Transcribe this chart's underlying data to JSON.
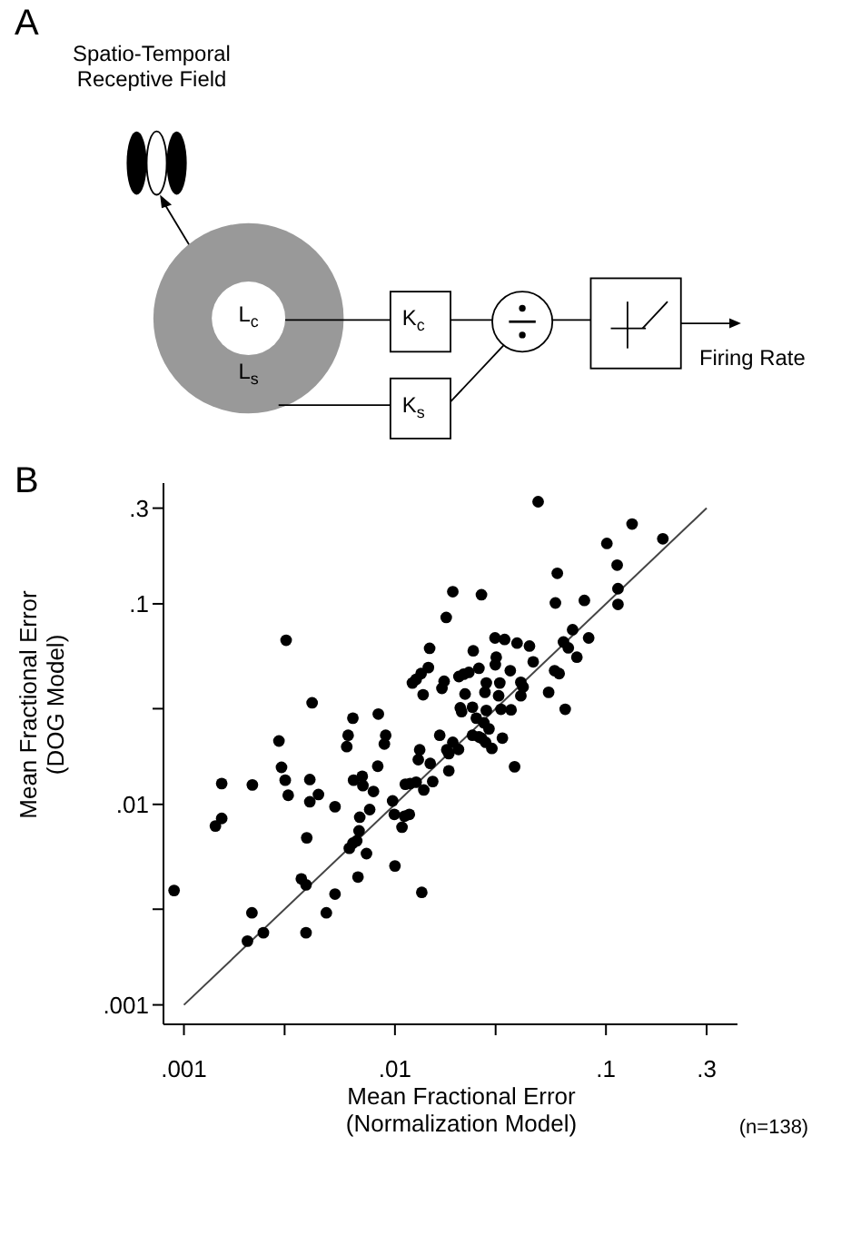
{
  "chart_data": [
    {
      "type": "other",
      "title": "A",
      "annotations": [
        "Spatio-Temporal\nReceptive Field",
        "L$_{c}$",
        "L$_{s}$",
        "K$_{c}$",
        "K$_{s}$",
        "Firing Rate"
      ]
    },
    {
      "type": "scatter",
      "title": "B",
      "xlabel": "Mean Fractional Error\n(Normalization Model)",
      "ylabel": "Mean Fractional Error\n(DOG Model)",
      "annotations": [
        "(n=138)"
      ],
      "log": "xy",
      "xlim": [
        0.0008,
        0.42
      ],
      "ylim": [
        0.0008,
        0.4
      ],
      "xticks": [
        {
          "value": 0.001,
          "label": ".001"
        },
        {
          "value": 0.003,
          "label": null
        },
        {
          "value": 0.01,
          "label": ".01"
        },
        {
          "value": 0.03,
          "label": null
        },
        {
          "value": 0.1,
          "label": ".1"
        },
        {
          "value": 0.3,
          "label": ".3"
        }
      ],
      "yticks": [
        {
          "value": 0.001,
          "label": ".001"
        },
        {
          "value": 0.003,
          "label": null
        },
        {
          "value": 0.01,
          "label": ".01"
        },
        {
          "value": 0.03,
          "label": null
        },
        {
          "value": 0.1,
          "label": ".1"
        },
        {
          "value": 0.3,
          "label": ".3"
        }
      ],
      "series": [
        {
          "type": "scatter",
          "color": "#000000",
          "marker": "circle",
          "x": [
            0.0477,
            0.133,
            0.186,
            0.101,
            0.113,
            0.0588,
            0.114,
            0.0188,
            0.0257,
            0.0576,
            0.079,
            0.114,
            0.0175,
            0.0695,
            0.00305,
            0.0298,
            0.0331,
            0.0379,
            0.0434,
            0.0828,
            0.0629,
            0.0663,
            0.0146,
            0.0235,
            0.0302,
            0.0728,
            0.0452,
            0.0144,
            0.025,
            0.0299,
            0.0352,
            0.0571,
            0.06,
            0.0133,
            0.0126,
            0.0121,
            0.0171,
            0.0167,
            0.0201,
            0.0212,
            0.0224,
            0.0271,
            0.0314,
            0.0395,
            0.0405,
            0.0535,
            0.0136,
            0.0215,
            0.0267,
            0.031,
            0.0395,
            0.00405,
            0.0204,
            0.0233,
            0.0207,
            0.0271,
            0.0318,
            0.0355,
            0.0641,
            0.00834,
            0.00632,
            0.0243,
            0.0264,
            0.0279,
            0.00904,
            0.006,
            0.0163,
            0.025,
            0.0323,
            0.00282,
            0.00891,
            0.00591,
            0.0188,
            0.0131,
            0.0269,
            0.0029,
            0.0129,
            0.0147,
            0.00829,
            0.018,
            0.02,
            0.0288,
            0.0369,
            0.018,
            0.00151,
            0.00211,
            0.00302,
            0.00395,
            0.00312,
            0.00395,
            0.00434,
            0.0052,
            0.00637,
            0.007,
            0.00705,
            0.00791,
            0.00975,
            0.0112,
            0.0118,
            0.0126,
            0.0137,
            0.0151,
            0.00759,
            0.00681,
            0.00993,
            0.0111,
            0.0117,
            0.0108,
            0.00141,
            0.00151,
            0.00382,
            0.00676,
            0.00608,
            0.00632,
            0.00659,
            0.00733,
            0.01,
            0.00668,
            0.0036,
            0.00379,
            0.0134,
            0.000898,
            0.0052,
            0.0021,
            0.00473,
            0.00238,
            0.00379,
            0.002,
            0.0233,
            0.0257,
            0.0176
          ],
          "values": [
            0.323,
            0.25,
            0.211,
            0.2,
            0.156,
            0.142,
            0.119,
            0.115,
            0.111,
            0.101,
            0.104,
            0.0994,
            0.0855,
            0.0743,
            0.0658,
            0.0676,
            0.0664,
            0.0637,
            0.0616,
            0.0676,
            0.0645,
            0.0603,
            0.06,
            0.0583,
            0.0542,
            0.0542,
            0.0514,
            0.0481,
            0.0477,
            0.0497,
            0.0464,
            0.0464,
            0.0449,
            0.0449,
            0.042,
            0.0403,
            0.0411,
            0.0379,
            0.0434,
            0.0446,
            0.0455,
            0.0403,
            0.0403,
            0.0406,
            0.0385,
            0.0362,
            0.0352,
            0.0355,
            0.0362,
            0.0348,
            0.0348,
            0.0321,
            0.0303,
            0.0305,
            0.029,
            0.0294,
            0.0298,
            0.0296,
            0.0298,
            0.0282,
            0.0269,
            0.0269,
            0.0255,
            0.0238,
            0.0221,
            0.0221,
            0.0221,
            0.0217,
            0.0214,
            0.0207,
            0.02,
            0.0194,
            0.0204,
            0.0187,
            0.0204,
            0.0153,
            0.0167,
            0.016,
            0.0155,
            0.0179,
            0.0188,
            0.019,
            0.0154,
            0.0147,
            0.0127,
            0.0125,
            0.0132,
            0.0133,
            0.0111,
            0.0103,
            0.0112,
            0.00973,
            0.0132,
            0.0138,
            0.0124,
            0.0116,
            0.0104,
            0.0126,
            0.0127,
            0.0129,
            0.0118,
            0.013,
            0.00942,
            0.00863,
            0.00891,
            0.00873,
            0.00891,
            0.00769,
            0.0078,
            0.00851,
            0.00681,
            0.00738,
            0.00604,
            0.00641,
            0.00658,
            0.00568,
            0.00493,
            0.00434,
            0.00425,
            0.00397,
            0.00364,
            0.00372,
            0.00357,
            0.00288,
            0.00288,
            0.00229,
            0.00229,
            0.00208,
            0.0221,
            0.0214,
            0.0187
          ]
        },
        {
          "type": "line",
          "color": "#444444",
          "x": [
            0.001,
            0.3
          ],
          "values": [
            0.001,
            0.3
          ]
        }
      ]
    }
  ]
}
